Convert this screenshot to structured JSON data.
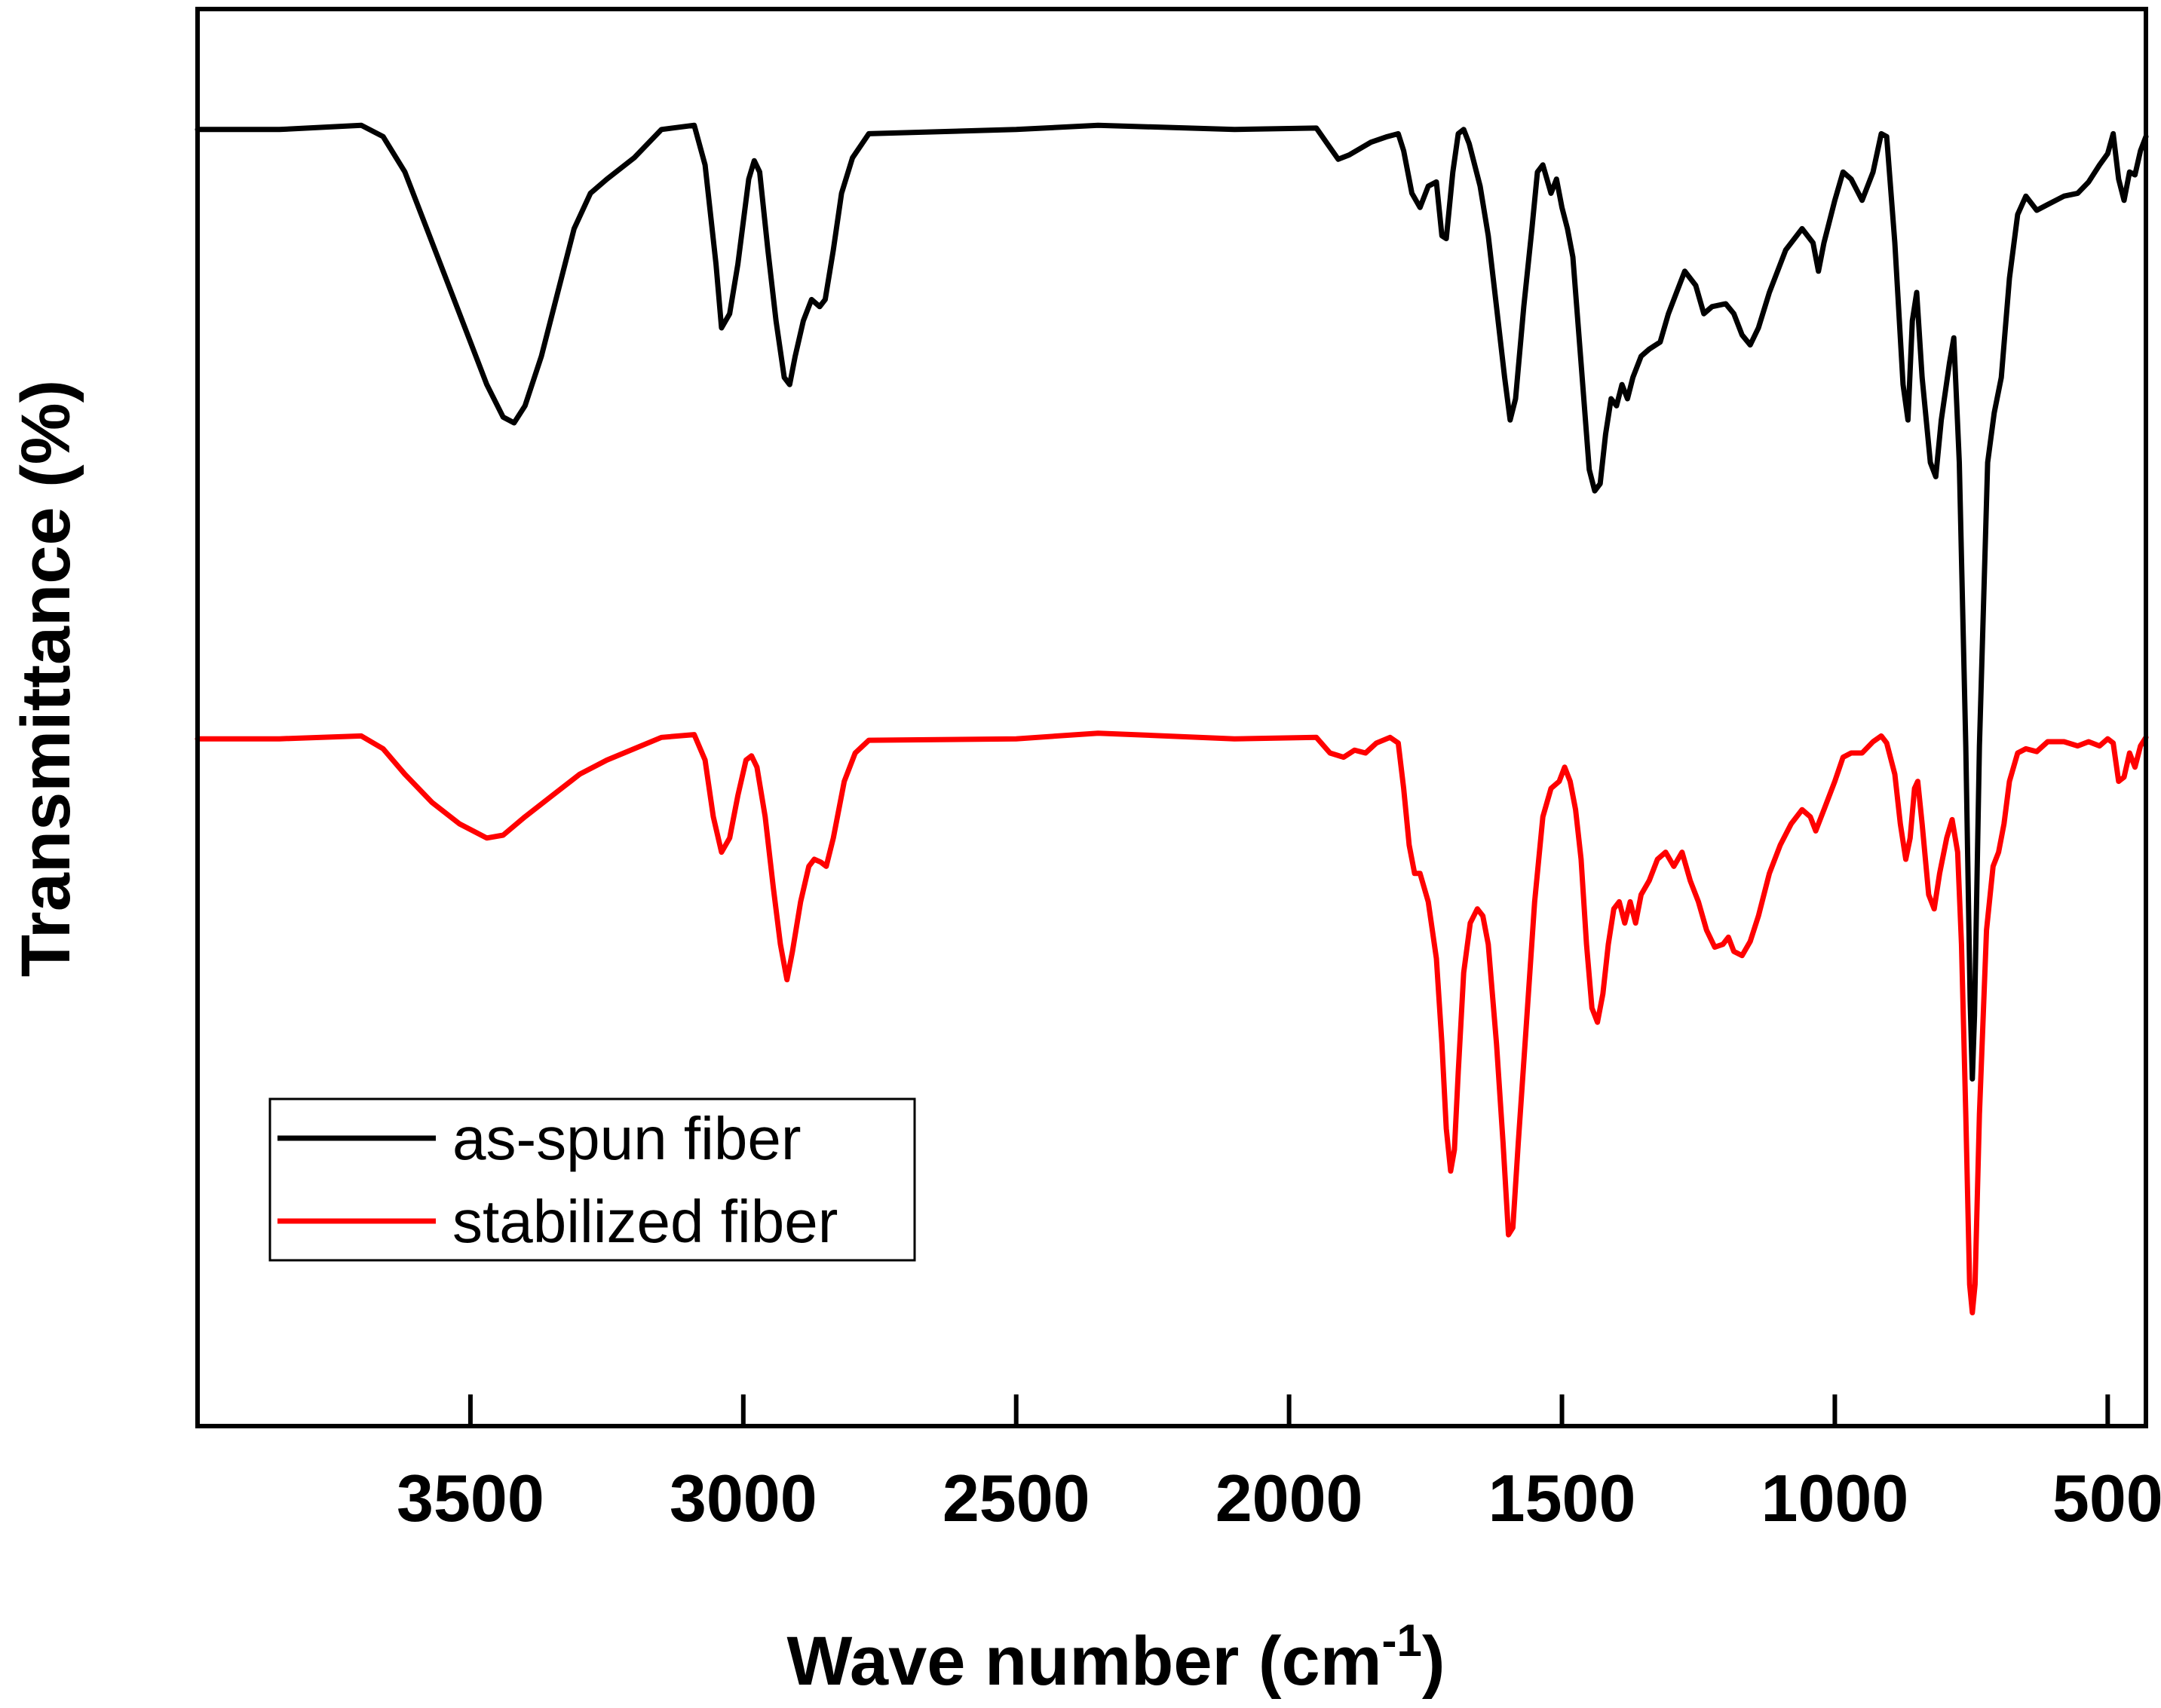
{
  "chart_data": {
    "type": "line",
    "title": "",
    "xlabel": "Wave number (cm",
    "xlabel_sup": "-1",
    "xlabel_end": ")",
    "ylabel": "Transmittance (%)",
    "xlim": [
      4000,
      430
    ],
    "ylim": [
      0,
      100
    ],
    "x_ticks": [
      3500,
      3000,
      2500,
      2000,
      1500,
      1000,
      500
    ],
    "x_tick_labels": [
      "3500",
      "3000",
      "2500",
      "2000",
      "1500",
      "1000",
      "500"
    ],
    "y_ticks_visible": false,
    "grid": false,
    "legend_position": "bottom-left",
    "series": [
      {
        "name": "as-spun fiber",
        "color": "#000000",
        "points": [
          [
            4000,
            91.5
          ],
          [
            3850,
            91.5
          ],
          [
            3700,
            91.8
          ],
          [
            3660,
            91.0
          ],
          [
            3620,
            88.5
          ],
          [
            3580,
            84.5
          ],
          [
            3540,
            80.5
          ],
          [
            3500,
            76.5
          ],
          [
            3470,
            73.5
          ],
          [
            3440,
            71.2
          ],
          [
            3420,
            70.8
          ],
          [
            3400,
            72.0
          ],
          [
            3370,
            75.5
          ],
          [
            3340,
            80.0
          ],
          [
            3310,
            84.5
          ],
          [
            3280,
            87.0
          ],
          [
            3250,
            88.0
          ],
          [
            3200,
            89.5
          ],
          [
            3150,
            91.5
          ],
          [
            3090,
            91.8
          ],
          [
            3070,
            89.0
          ],
          [
            3050,
            82.0
          ],
          [
            3040,
            77.5
          ],
          [
            3025,
            78.5
          ],
          [
            3010,
            82.0
          ],
          [
            2990,
            88.0
          ],
          [
            2980,
            89.3
          ],
          [
            2970,
            88.5
          ],
          [
            2955,
            83.0
          ],
          [
            2940,
            78.0
          ],
          [
            2925,
            74.0
          ],
          [
            2915,
            73.5
          ],
          [
            2905,
            75.5
          ],
          [
            2890,
            78.0
          ],
          [
            2875,
            79.5
          ],
          [
            2860,
            79.0
          ],
          [
            2850,
            79.5
          ],
          [
            2835,
            83.0
          ],
          [
            2820,
            87.0
          ],
          [
            2800,
            89.5
          ],
          [
            2770,
            91.2
          ],
          [
            2500,
            91.5
          ],
          [
            2350,
            91.8
          ],
          [
            2100,
            91.5
          ],
          [
            1950,
            91.6
          ],
          [
            1930,
            90.5
          ],
          [
            1910,
            89.4
          ],
          [
            1890,
            89.7
          ],
          [
            1850,
            90.6
          ],
          [
            1820,
            91.0
          ],
          [
            1800,
            91.2
          ],
          [
            1790,
            90.0
          ],
          [
            1775,
            87.0
          ],
          [
            1760,
            86.0
          ],
          [
            1745,
            87.5
          ],
          [
            1730,
            87.8
          ],
          [
            1720,
            84.0
          ],
          [
            1712,
            83.8
          ],
          [
            1700,
            88.5
          ],
          [
            1690,
            91.2
          ],
          [
            1680,
            91.5
          ],
          [
            1670,
            90.5
          ],
          [
            1650,
            87.5
          ],
          [
            1635,
            84.0
          ],
          [
            1620,
            79.0
          ],
          [
            1605,
            74.0
          ],
          [
            1595,
            71.0
          ],
          [
            1585,
            72.5
          ],
          [
            1570,
            79.0
          ],
          [
            1555,
            84.5
          ],
          [
            1545,
            88.5
          ],
          [
            1535,
            89.0
          ],
          [
            1520,
            87.0
          ],
          [
            1510,
            88.0
          ],
          [
            1500,
            86.0
          ],
          [
            1490,
            84.5
          ],
          [
            1480,
            82.5
          ],
          [
            1465,
            75.0
          ],
          [
            1450,
            67.5
          ],
          [
            1440,
            66.0
          ],
          [
            1430,
            66.5
          ],
          [
            1420,
            70.0
          ],
          [
            1410,
            72.5
          ],
          [
            1400,
            72.0
          ],
          [
            1390,
            73.5
          ],
          [
            1380,
            72.5
          ],
          [
            1370,
            74.0
          ],
          [
            1355,
            75.5
          ],
          [
            1340,
            76.0
          ],
          [
            1320,
            76.5
          ],
          [
            1305,
            78.5
          ],
          [
            1290,
            80.0
          ],
          [
            1275,
            81.5
          ],
          [
            1255,
            80.5
          ],
          [
            1240,
            78.5
          ],
          [
            1225,
            79.0
          ],
          [
            1200,
            79.2
          ],
          [
            1185,
            78.5
          ],
          [
            1170,
            77.0
          ],
          [
            1155,
            76.3
          ],
          [
            1140,
            77.5
          ],
          [
            1120,
            80.0
          ],
          [
            1090,
            83.0
          ],
          [
            1060,
            84.5
          ],
          [
            1040,
            83.5
          ],
          [
            1030,
            81.5
          ],
          [
            1020,
            83.5
          ],
          [
            1000,
            86.5
          ],
          [
            985,
            88.5
          ],
          [
            970,
            88.0
          ],
          [
            950,
            86.5
          ],
          [
            930,
            88.5
          ],
          [
            915,
            91.2
          ],
          [
            905,
            91.0
          ],
          [
            890,
            83.5
          ],
          [
            875,
            73.5
          ],
          [
            866,
            71.0
          ],
          [
            858,
            78.0
          ],
          [
            850,
            80.0
          ],
          [
            840,
            74.0
          ],
          [
            825,
            68.0
          ],
          [
            815,
            67.0
          ],
          [
            805,
            71.0
          ],
          [
            790,
            75.0
          ],
          [
            782,
            76.8
          ],
          [
            772,
            68.0
          ],
          [
            760,
            48.0
          ],
          [
            752,
            30.0
          ],
          [
            748,
            24.5
          ],
          [
            744,
            29.0
          ],
          [
            735,
            48.0
          ],
          [
            720,
            68.0
          ],
          [
            708,
            71.5
          ],
          [
            695,
            74.0
          ],
          [
            680,
            81.0
          ],
          [
            665,
            85.5
          ],
          [
            650,
            86.8
          ],
          [
            630,
            85.8
          ],
          [
            610,
            86.2
          ],
          [
            580,
            86.8
          ],
          [
            555,
            87.0
          ],
          [
            535,
            87.8
          ],
          [
            515,
            89.0
          ],
          [
            500,
            89.8
          ],
          [
            490,
            91.2
          ],
          [
            480,
            88.0
          ],
          [
            470,
            86.5
          ],
          [
            460,
            88.5
          ],
          [
            450,
            88.3
          ],
          [
            440,
            90.0
          ],
          [
            430,
            91.0
          ]
        ]
      },
      {
        "name": "stabilized fiber",
        "color": "#ff0000",
        "points": [
          [
            4000,
            48.5
          ],
          [
            3850,
            48.5
          ],
          [
            3700,
            48.7
          ],
          [
            3660,
            47.8
          ],
          [
            3620,
            46.0
          ],
          [
            3570,
            44.0
          ],
          [
            3520,
            42.5
          ],
          [
            3470,
            41.5
          ],
          [
            3440,
            41.7
          ],
          [
            3400,
            43.0
          ],
          [
            3350,
            44.5
          ],
          [
            3300,
            46.0
          ],
          [
            3250,
            47.0
          ],
          [
            3200,
            47.8
          ],
          [
            3150,
            48.6
          ],
          [
            3090,
            48.8
          ],
          [
            3070,
            47.0
          ],
          [
            3055,
            43.0
          ],
          [
            3040,
            40.5
          ],
          [
            3025,
            41.5
          ],
          [
            3010,
            44.5
          ],
          [
            2995,
            47.0
          ],
          [
            2985,
            47.3
          ],
          [
            2975,
            46.5
          ],
          [
            2960,
            43.0
          ],
          [
            2945,
            38.0
          ],
          [
            2932,
            34.0
          ],
          [
            2920,
            31.5
          ],
          [
            2910,
            33.5
          ],
          [
            2895,
            37.0
          ],
          [
            2880,
            39.5
          ],
          [
            2870,
            40.0
          ],
          [
            2858,
            39.8
          ],
          [
            2848,
            39.5
          ],
          [
            2835,
            41.5
          ],
          [
            2815,
            45.5
          ],
          [
            2795,
            47.5
          ],
          [
            2770,
            48.4
          ],
          [
            2500,
            48.5
          ],
          [
            2350,
            48.9
          ],
          [
            2100,
            48.5
          ],
          [
            1950,
            48.6
          ],
          [
            1925,
            47.5
          ],
          [
            1900,
            47.2
          ],
          [
            1880,
            47.7
          ],
          [
            1860,
            47.5
          ],
          [
            1840,
            48.2
          ],
          [
            1815,
            48.6
          ],
          [
            1800,
            48.2
          ],
          [
            1790,
            45.0
          ],
          [
            1780,
            41.0
          ],
          [
            1770,
            39.0
          ],
          [
            1760,
            39.0
          ],
          [
            1745,
            37.0
          ],
          [
            1730,
            33.0
          ],
          [
            1720,
            27.0
          ],
          [
            1712,
            21.0
          ],
          [
            1704,
            18.0
          ],
          [
            1697,
            19.5
          ],
          [
            1690,
            25.0
          ],
          [
            1680,
            32.0
          ],
          [
            1668,
            35.5
          ],
          [
            1655,
            36.5
          ],
          [
            1645,
            36.0
          ],
          [
            1635,
            34.0
          ],
          [
            1620,
            27.0
          ],
          [
            1608,
            20.0
          ],
          [
            1598,
            13.5
          ],
          [
            1590,
            14.0
          ],
          [
            1580,
            20.0
          ],
          [
            1565,
            28.5
          ],
          [
            1550,
            37.0
          ],
          [
            1535,
            43.0
          ],
          [
            1520,
            45.0
          ],
          [
            1505,
            45.5
          ],
          [
            1495,
            46.5
          ],
          [
            1485,
            45.5
          ],
          [
            1475,
            43.5
          ],
          [
            1465,
            40.0
          ],
          [
            1455,
            34.0
          ],
          [
            1445,
            29.5
          ],
          [
            1435,
            28.5
          ],
          [
            1425,
            30.5
          ],
          [
            1415,
            34.0
          ],
          [
            1405,
            36.5
          ],
          [
            1395,
            37.0
          ],
          [
            1385,
            35.5
          ],
          [
            1375,
            37.0
          ],
          [
            1365,
            35.5
          ],
          [
            1355,
            37.5
          ],
          [
            1340,
            38.5
          ],
          [
            1325,
            40.0
          ],
          [
            1310,
            40.5
          ],
          [
            1295,
            39.5
          ],
          [
            1280,
            40.5
          ],
          [
            1265,
            38.5
          ],
          [
            1250,
            37.0
          ],
          [
            1235,
            35.0
          ],
          [
            1220,
            33.8
          ],
          [
            1205,
            34.0
          ],
          [
            1195,
            34.5
          ],
          [
            1185,
            33.5
          ],
          [
            1170,
            33.2
          ],
          [
            1155,
            34.2
          ],
          [
            1140,
            36.0
          ],
          [
            1120,
            39.0
          ],
          [
            1100,
            41.0
          ],
          [
            1080,
            42.5
          ],
          [
            1060,
            43.5
          ],
          [
            1045,
            43.0
          ],
          [
            1035,
            42.0
          ],
          [
            1020,
            43.5
          ],
          [
            1000,
            45.5
          ],
          [
            985,
            47.2
          ],
          [
            970,
            47.5
          ],
          [
            950,
            47.5
          ],
          [
            930,
            48.3
          ],
          [
            915,
            48.7
          ],
          [
            905,
            48.2
          ],
          [
            890,
            46.0
          ],
          [
            880,
            42.5
          ],
          [
            870,
            40.0
          ],
          [
            862,
            41.5
          ],
          [
            854,
            45.0
          ],
          [
            848,
            45.5
          ],
          [
            840,
            42.5
          ],
          [
            828,
            37.5
          ],
          [
            818,
            36.5
          ],
          [
            808,
            39.0
          ],
          [
            795,
            41.5
          ],
          [
            785,
            42.8
          ],
          [
            775,
            40.5
          ],
          [
            768,
            34.0
          ],
          [
            760,
            22.0
          ],
          [
            753,
            10.0
          ],
          [
            748,
            8.0
          ],
          [
            743,
            10.0
          ],
          [
            735,
            22.0
          ],
          [
            722,
            35.0
          ],
          [
            710,
            39.5
          ],
          [
            700,
            40.5
          ],
          [
            690,
            42.5
          ],
          [
            680,
            45.5
          ],
          [
            665,
            47.5
          ],
          [
            650,
            47.8
          ],
          [
            630,
            47.6
          ],
          [
            610,
            48.3
          ],
          [
            580,
            48.3
          ],
          [
            555,
            48.0
          ],
          [
            535,
            48.3
          ],
          [
            515,
            48.0
          ],
          [
            500,
            48.5
          ],
          [
            490,
            48.2
          ],
          [
            480,
            45.5
          ],
          [
            470,
            45.8
          ],
          [
            460,
            47.5
          ],
          [
            450,
            46.5
          ],
          [
            440,
            48.0
          ],
          [
            430,
            48.6
          ]
        ]
      }
    ]
  }
}
